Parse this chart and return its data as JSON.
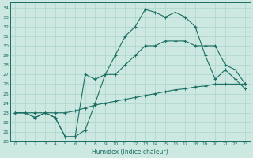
{
  "xlabel": "Humidex (Indice chaleur)",
  "xlim": [
    -0.5,
    23.5
  ],
  "ylim": [
    20,
    34.5
  ],
  "bg_color": "#cce8e0",
  "grid_color": "#b0d8d0",
  "line_color": "#1a6e64",
  "line1_x": [
    0,
    1,
    2,
    3,
    4,
    5,
    6,
    7,
    8,
    9,
    10,
    11,
    12,
    13,
    14,
    15,
    16,
    17,
    18,
    19,
    20,
    21,
    22,
    23
  ],
  "line1_y": [
    23,
    23,
    22.5,
    23,
    22.5,
    20.5,
    20.5,
    21.2,
    24,
    27,
    29,
    31,
    32,
    33.8,
    33.5,
    33,
    33.5,
    33,
    32,
    29,
    26.5,
    27.5,
    26.5,
    25.5
  ],
  "line2_x": [
    0,
    1,
    2,
    3,
    4,
    5,
    6,
    7,
    8,
    9,
    10,
    11,
    12,
    13,
    14,
    15,
    16,
    17,
    18,
    19,
    20,
    21,
    22,
    23
  ],
  "line2_y": [
    23,
    23,
    22.5,
    23,
    22.5,
    20.5,
    20.5,
    27,
    26.5,
    27,
    27,
    28,
    29,
    30,
    30,
    30.5,
    30.5,
    30.5,
    30,
    30,
    30,
    28,
    27.5,
    26
  ],
  "line3_x": [
    0,
    1,
    2,
    3,
    4,
    5,
    6,
    7,
    8,
    9,
    10,
    11,
    12,
    13,
    14,
    15,
    16,
    17,
    18,
    19,
    20,
    21,
    22,
    23
  ],
  "line3_y": [
    23,
    23,
    23,
    23,
    23,
    23,
    23.2,
    23.5,
    23.8,
    24,
    24.2,
    24.4,
    24.6,
    24.8,
    25,
    25.2,
    25.4,
    25.5,
    25.7,
    25.8,
    26,
    26,
    26,
    26
  ],
  "yticks": [
    20,
    21,
    22,
    23,
    24,
    25,
    26,
    27,
    28,
    29,
    30,
    31,
    32,
    33,
    34
  ],
  "xticks": [
    0,
    1,
    2,
    3,
    4,
    5,
    6,
    7,
    8,
    9,
    10,
    11,
    12,
    13,
    14,
    15,
    16,
    17,
    18,
    19,
    20,
    21,
    22,
    23
  ]
}
